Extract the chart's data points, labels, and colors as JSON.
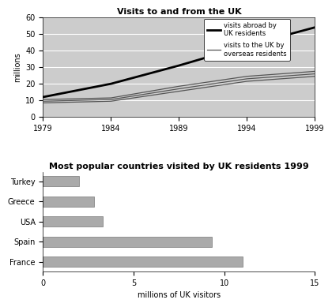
{
  "line_title": "Visits to and from the UK",
  "bar_title": "Most popular countries visited by UK residents 1999",
  "years": [
    1979,
    1984,
    1989,
    1994,
    1999
  ],
  "visits_abroad": [
    12,
    20,
    31,
    43,
    54
  ],
  "visits_to_uk_upper": [
    10.5,
    11.5,
    18.5,
    24.5,
    27.5
  ],
  "visits_to_uk_mid": [
    9.5,
    10.5,
    17.0,
    23.0,
    26.0
  ],
  "visits_to_uk_lower": [
    8.5,
    9.5,
    15.5,
    21.5,
    24.5
  ],
  "line_ylabel": "millions",
  "line_ylim": [
    0,
    60
  ],
  "line_xlim": [
    1979,
    1999
  ],
  "line_xticks": [
    1979,
    1984,
    1989,
    1994,
    1999
  ],
  "bar_countries": [
    "Turkey",
    "Greece",
    "USA",
    "Spain",
    "France"
  ],
  "bar_values": [
    2.0,
    2.8,
    3.3,
    9.3,
    11.0
  ],
  "bar_color": "#aaaaaa",
  "bar_xlabel": "millions of UK visitors",
  "bar_xlim": [
    0,
    15
  ],
  "bar_xticks": [
    0,
    5,
    10,
    15
  ],
  "legend_abroad_label": "visits abroad by\nUK residents",
  "legend_uk_label": "visits to the UK by\noverseas residents",
  "bg_color": "#cccccc",
  "line_color_abroad": "#000000",
  "line_color_uk": "#555555",
  "title_fontsize": 8,
  "axis_fontsize": 7,
  "tick_fontsize": 7
}
